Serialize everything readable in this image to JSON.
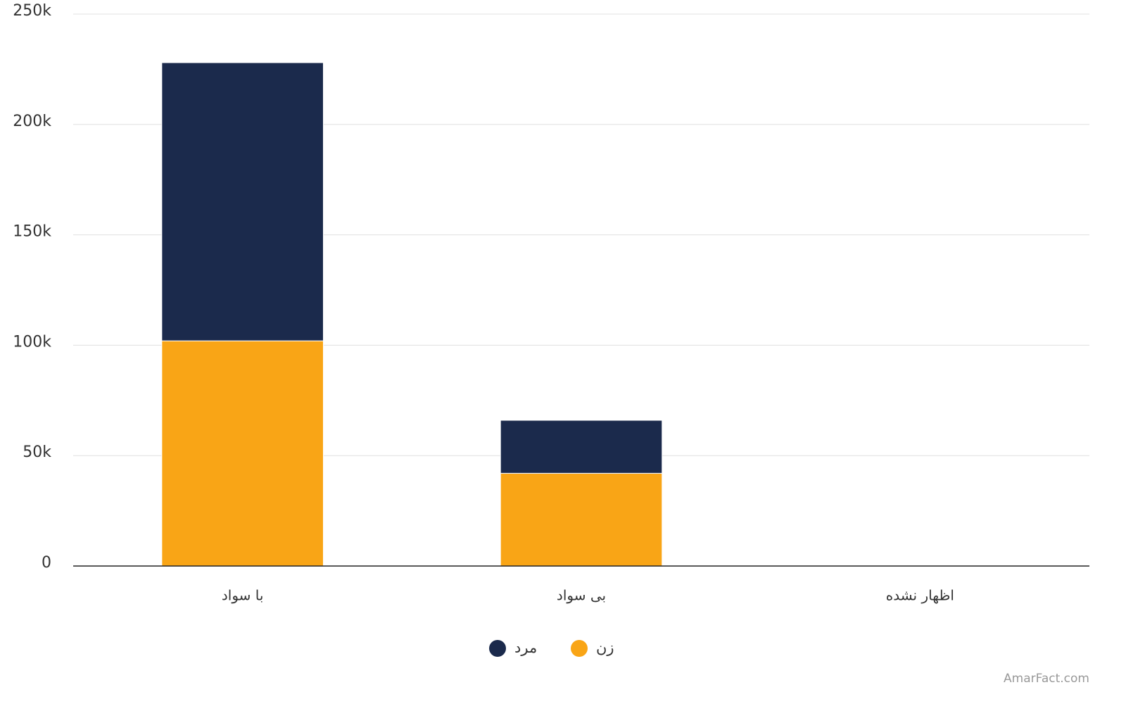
{
  "chart_data": {
    "type": "stacked_bar",
    "categories": [
      "با سواد",
      "بی سواد",
      "اظهار نشده"
    ],
    "series": [
      {
        "name": "زن",
        "color": "#f9a516",
        "values": [
          102000,
          42000,
          0
        ]
      },
      {
        "name": "مرد",
        "color": "#1b2a4c",
        "values": [
          126000,
          24000,
          0
        ]
      }
    ],
    "ylim": [
      0,
      250000
    ],
    "yticks": [
      0,
      {
        "value": 50000,
        "label": "50k"
      },
      {
        "value": 100000,
        "label": "100k"
      },
      {
        "value": 150000,
        "label": "150k"
      },
      {
        "value": 200000,
        "label": "200k"
      },
      {
        "value": 250000,
        "label": "250k"
      }
    ],
    "grid": true,
    "legend": "bottom",
    "watermark": "AmarFact.com"
  }
}
